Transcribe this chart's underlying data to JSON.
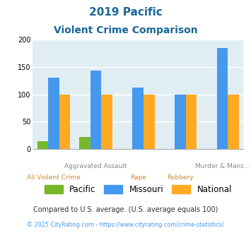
{
  "title_line1": "2019 Pacific",
  "title_line2": "Violent Crime Comparison",
  "pacific_vals": [
    15,
    22,
    0,
    0,
    0
  ],
  "missouri_vals": [
    130,
    143,
    113,
    100,
    185
  ],
  "national_vals": [
    100,
    100,
    100,
    100,
    100
  ],
  "color_pacific": "#76b82a",
  "color_missouri": "#4499ee",
  "color_national": "#ffaa22",
  "color_bg": "#e0eef4",
  "color_title": "#1a6699",
  "ylim": [
    0,
    200
  ],
  "yticks": [
    0,
    50,
    100,
    150,
    200
  ],
  "bar_width": 0.26,
  "x_top_labels": [
    "",
    "Aggravated Assault",
    "",
    "",
    "Murder & Mans..."
  ],
  "x_bot_labels": [
    "All Violent Crime",
    "",
    "Rape",
    "Robbery",
    ""
  ],
  "x_top_color": "#888888",
  "x_bot_color": "#cc8833",
  "legend_labels": [
    "Pacific",
    "Missouri",
    "National"
  ],
  "footer1": "Compared to U.S. average. (U.S. average equals 100)",
  "footer2": "© 2025 CityRating.com - https://www.cityrating.com/crime-statistics/",
  "footer1_color": "#333333",
  "footer2_color": "#4499ee"
}
